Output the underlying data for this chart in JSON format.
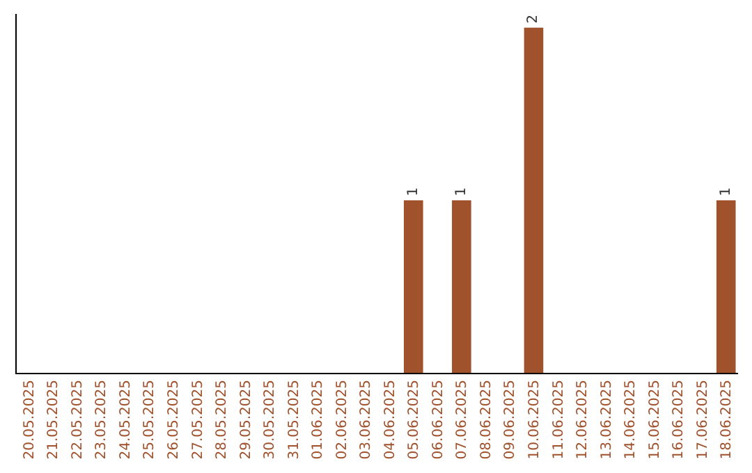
{
  "chart_data": {
    "type": "bar",
    "categories": [
      "20.05.2025",
      "21.05.2025",
      "22.05.2025",
      "23.05.2025",
      "24.05.2025",
      "25.05.2025",
      "26.05.2025",
      "27.05.2025",
      "28.05.2025",
      "29.05.2025",
      "30.05.2025",
      "31.05.2025",
      "01.06.2025",
      "02.06.2025",
      "03.06.2025",
      "04.06.2025",
      "05.06.2025",
      "06.06.2025",
      "07.06.2025",
      "08.06.2025",
      "09.06.2025",
      "10.06.2025",
      "11.06.2025",
      "12.06.2025",
      "13.06.2025",
      "14.06.2025",
      "15.06.2025",
      "16.06.2025",
      "17.06.2025",
      "18.06.2025"
    ],
    "values": [
      null,
      null,
      null,
      null,
      null,
      null,
      null,
      null,
      null,
      null,
      null,
      null,
      null,
      null,
      null,
      null,
      1,
      null,
      1,
      null,
      null,
      2,
      null,
      null,
      null,
      null,
      null,
      null,
      null,
      1
    ],
    "data_labels": true,
    "color": "#a0522d",
    "tick_labels": "x",
    "legend": false
  }
}
